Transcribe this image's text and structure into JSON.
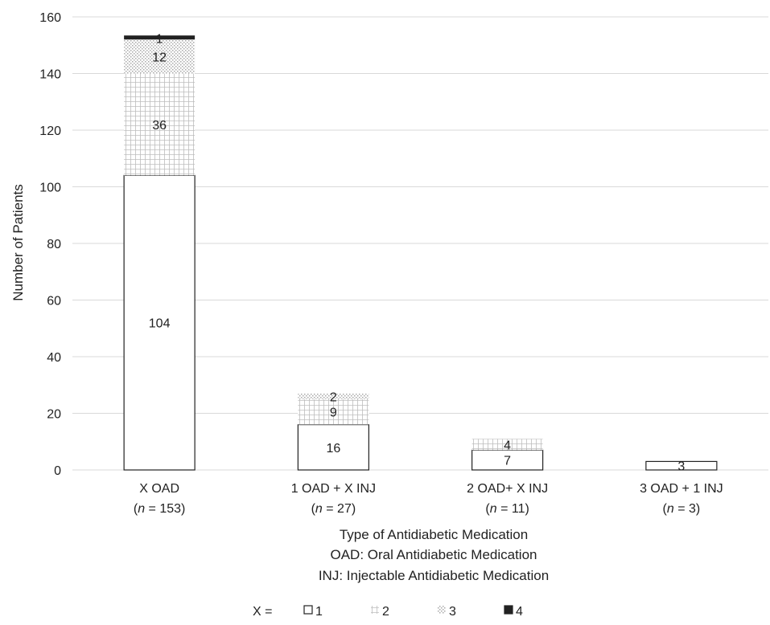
{
  "chart_data": {
    "type": "bar",
    "stacked": true,
    "categories": [
      "X OAD",
      "1 OAD + X INJ",
      "2 OAD+ X INJ",
      "3 OAD + 1 INJ"
    ],
    "category_n": [
      "153",
      "27",
      "11",
      "3"
    ],
    "n_prefix": "(",
    "n_italic": "n",
    "n_eq": " = ",
    "n_suffix": ")",
    "series": [
      {
        "name": "1",
        "values": [
          104,
          16,
          7,
          3
        ],
        "labels": [
          "104",
          "16",
          "7",
          "3"
        ],
        "pattern": "white"
      },
      {
        "name": "2",
        "values": [
          36,
          9,
          4,
          0
        ],
        "labels": [
          "36",
          "9",
          "4",
          ""
        ],
        "pattern": "grid"
      },
      {
        "name": "3",
        "values": [
          12,
          2,
          0,
          0
        ],
        "labels": [
          "12",
          "2",
          "",
          ""
        ],
        "pattern": "dots"
      },
      {
        "name": "4",
        "values": [
          1,
          0,
          0,
          0
        ],
        "labels": [
          "1",
          "",
          "",
          ""
        ],
        "pattern": "black"
      }
    ],
    "ylabel": "Number of Patients",
    "xlabel_lines": [
      "Type of Antidiabetic Medication",
      "OAD: Oral Antidiabetic Medication",
      "INJ: Injectable Antidiabetic Medication"
    ],
    "ylim": [
      0,
      160
    ],
    "yticks": [
      0,
      20,
      40,
      60,
      80,
      100,
      120,
      140,
      160
    ],
    "grid": true,
    "legend_prefix": "X =",
    "legend_position": "bottom",
    "colors": {
      "grid": "#d9d9d9",
      "edge": "#222222",
      "pattern": "#bdbdbd",
      "black": "#222222"
    }
  }
}
